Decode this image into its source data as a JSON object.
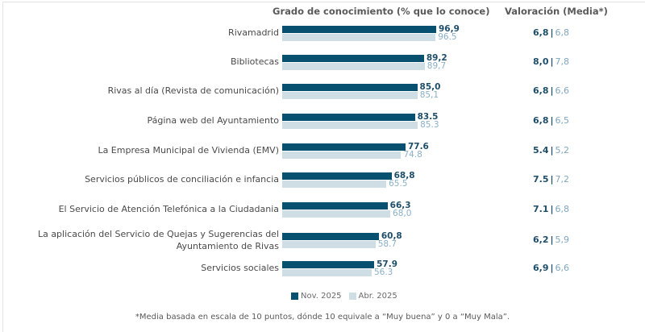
{
  "chart_data": {
    "type": "bar",
    "orientation": "horizontal",
    "title": "Grado de conocimiento (% que lo conoce)",
    "rating_title": "Valoración (Media*)",
    "xlim": [
      0,
      100
    ],
    "categories": [
      "Rivamadrid",
      "Bibliotecas",
      "Rivas al día (Revista de comunicación)",
      "Página web del Ayuntamiento",
      "La Empresa Municipal de Vivienda (EMV)",
      "Servicios públicos de conciliación e infancia",
      "El Servicio de Atención Telefónica a la Ciudadania",
      "La aplicación del Servicio de Quejas y Sugerencias del\nAyuntamiento de Rivas",
      "Servicios sociales"
    ],
    "series": [
      {
        "name": "Nov. 2025",
        "color": "#07506f",
        "values": [
          96.9,
          89.2,
          85.0,
          83.5,
          77.6,
          68.8,
          66.3,
          60.8,
          57.9
        ],
        "labels": [
          "96,9",
          "89,2",
          "85,0",
          "83.5",
          "77.6",
          "68,8",
          "66,3",
          "60,8",
          "57.9"
        ],
        "ratings": [
          "6,8",
          "8,0",
          "6,8",
          "6,8",
          "5.4",
          "7.5",
          "7.1",
          "6,2",
          "6,9"
        ]
      },
      {
        "name": "Abr. 2025",
        "color": "#cfdde5",
        "values": [
          96.5,
          89.7,
          85.1,
          85.3,
          74.8,
          65.5,
          68.0,
          58.7,
          56.3
        ],
        "labels": [
          "96.5",
          "89,7",
          "85,1",
          "85.3",
          "74.8",
          "65.5",
          "68,0",
          "58.7",
          "56.3"
        ],
        "ratings": [
          "6,8",
          "7,8",
          "6,6",
          "6,5",
          "5,2",
          "7,2",
          "6,8",
          "5,9",
          "6,6"
        ]
      }
    ],
    "rating_separator": "|",
    "legend": [
      "Nov. 2025",
      "Abr. 2025"
    ],
    "legend_position": "bottom",
    "footnote": "*Media basada en escala de 10 puntos, dónde 10 equivale a “Muy buena” y 0 a “Muy Mala”."
  }
}
